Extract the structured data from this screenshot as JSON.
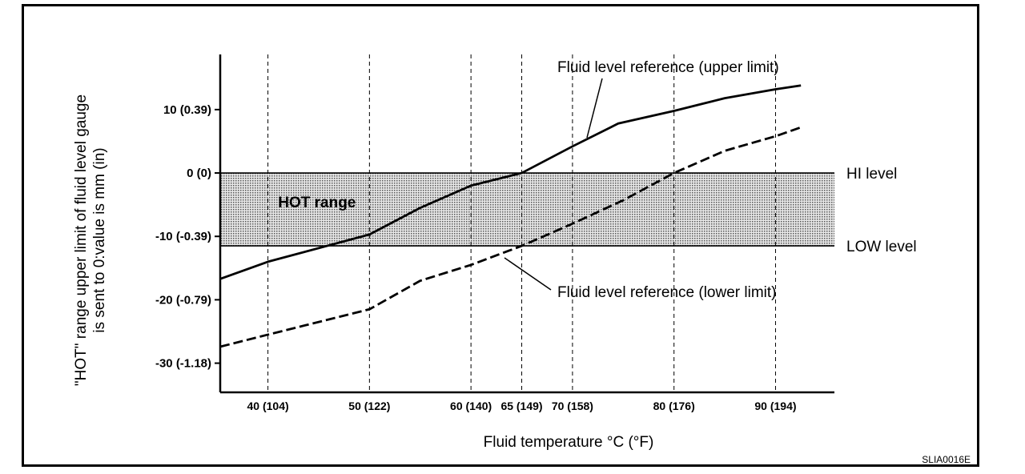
{
  "chart_data": {
    "type": "line",
    "title": "",
    "xlabel": "Fluid temperature °C (°F)",
    "ylabel_line1": "\"HOT\" range upper limit of fluid level gauge",
    "ylabel_line2": "is sent to 0:value is mm (in)",
    "xlim": [
      35.3,
      95.8
    ],
    "ylim": [
      -34.6,
      18.7
    ],
    "x_ticks": [
      {
        "value": 40,
        "label": "40 (104)"
      },
      {
        "value": 50,
        "label": "50 (122)"
      },
      {
        "value": 60,
        "label": "60 (140)"
      },
      {
        "value": 65,
        "label": "65 (149)"
      },
      {
        "value": 70,
        "label": "70 (158)"
      },
      {
        "value": 80,
        "label": "80 (176)"
      },
      {
        "value": 90,
        "label": "90 (194)"
      }
    ],
    "y_ticks": [
      {
        "value": 10,
        "label": "10 (0.39)"
      },
      {
        "value": 0,
        "label": "0 (0)"
      },
      {
        "value": -10,
        "label": "-10 (-0.39)"
      },
      {
        "value": -20,
        "label": "-20 (-0.79)"
      },
      {
        "value": -30,
        "label": "-30 (-1.18)"
      }
    ],
    "hot_range": {
      "label": "HOT range",
      "y_from": -11.5,
      "y_to": 0
    },
    "levels": [
      {
        "label": "HI level",
        "value": 0
      },
      {
        "label": "LOW level",
        "value": -11.5
      }
    ],
    "series": [
      {
        "name": "Fluid level reference (upper limit)",
        "style": "solid",
        "x": [
          35.3,
          40,
          50,
          55,
          60,
          65,
          70,
          74.5,
          80,
          85,
          90,
          92.5
        ],
        "y": [
          -16.7,
          -14,
          -9.7,
          -5.5,
          -2,
          0,
          4.2,
          7.8,
          9.8,
          11.8,
          13.2,
          13.8
        ]
      },
      {
        "name": "Fluid level reference (lower limit)",
        "style": "dashed",
        "x": [
          35.3,
          40,
          50,
          55,
          60,
          65,
          70,
          75,
          80,
          85,
          90,
          92.5
        ],
        "y": [
          -27.4,
          -25.5,
          -21.5,
          -17,
          -14.5,
          -11.5,
          -8,
          -4.3,
          0,
          3.5,
          5.8,
          7.2
        ]
      }
    ],
    "figure_code": "SLIA0016E"
  },
  "colors": {
    "line": "#000000",
    "hot_fill": "#bdbdbd",
    "background": "#ffffff"
  }
}
